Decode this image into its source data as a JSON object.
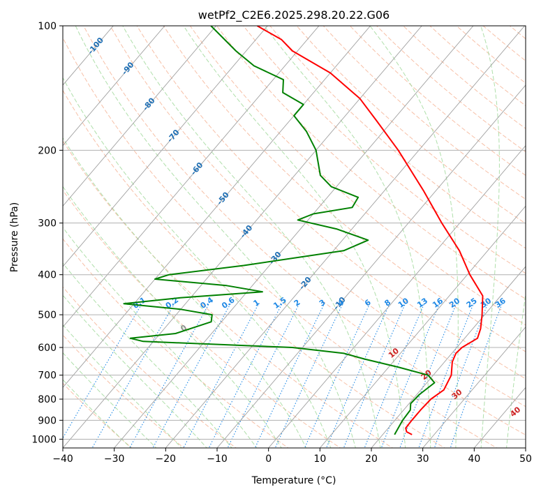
{
  "chart_data": {
    "type": "skew-t",
    "title": "wetPf2_C2E6.2025.298.20.22.G06",
    "xlabel": "Temperature (°C)",
    "ylabel": "Pressure (hPa)",
    "xlim": [
      -40,
      50
    ],
    "ylim_hpa": [
      1050,
      100
    ],
    "x_ticks": [
      -40,
      -30,
      -20,
      -10,
      0,
      10,
      20,
      30,
      40,
      50
    ],
    "x_tick_labels": [
      "−40",
      "−30",
      "−20",
      "−10",
      "0",
      "10",
      "20",
      "30",
      "40",
      "50"
    ],
    "p_ticks": [
      1000,
      900,
      800,
      700,
      600,
      500,
      400,
      300,
      200,
      100
    ],
    "p_tick_labels": [
      "1000",
      "900",
      "800",
      "700",
      "600",
      "500",
      "400",
      "300",
      "200",
      "100"
    ],
    "colors": {
      "temperature": "#ff0000",
      "dewpoint": "#008000",
      "isotherm": "#a0a0a0",
      "dry_adiabat": "#f4a582",
      "moist_adiabat": "#a1d99b",
      "mixing_ratio": "#1e88e5",
      "isotherm_label": "#1f6fb4",
      "moist_label": "#8f8f8f",
      "dry_label": "#cc2222"
    },
    "temperature": [
      {
        "p": 975,
        "t": 25.7
      },
      {
        "p": 960,
        "t": 24.2
      },
      {
        "p": 940,
        "t": 23.4
      },
      {
        "p": 900,
        "t": 23.3
      },
      {
        "p": 850,
        "t": 23.3
      },
      {
        "p": 800,
        "t": 23.5
      },
      {
        "p": 760,
        "t": 24.5
      },
      {
        "p": 700,
        "t": 23.5
      },
      {
        "p": 650,
        "t": 21.5
      },
      {
        "p": 620,
        "t": 20.8
      },
      {
        "p": 600,
        "t": 21.0
      },
      {
        "p": 570,
        "t": 22.5
      },
      {
        "p": 540,
        "t": 21.5
      },
      {
        "p": 500,
        "t": 19.5
      },
      {
        "p": 450,
        "t": 16.5
      },
      {
        "p": 400,
        "t": 10.5
      },
      {
        "p": 350,
        "t": 4.5
      },
      {
        "p": 300,
        "t": -3.5
      },
      {
        "p": 250,
        "t": -12.5
      },
      {
        "p": 200,
        "t": -24.0
      },
      {
        "p": 170,
        "t": -33.0
      },
      {
        "p": 150,
        "t": -40.0
      },
      {
        "p": 130,
        "t": -50.0
      },
      {
        "p": 115,
        "t": -61.0
      },
      {
        "p": 108,
        "t": -65.0
      },
      {
        "p": 100,
        "t": -72.0
      }
    ],
    "dewpoint": [
      {
        "p": 975,
        "t": 22.3
      },
      {
        "p": 900,
        "t": 21.5
      },
      {
        "p": 850,
        "t": 21.3
      },
      {
        "p": 820,
        "t": 20.3
      },
      {
        "p": 780,
        "t": 20.5
      },
      {
        "p": 730,
        "t": 21.5
      },
      {
        "p": 700,
        "t": 19.0
      },
      {
        "p": 670,
        "t": 12.0
      },
      {
        "p": 640,
        "t": 4.0
      },
      {
        "p": 620,
        "t": -1.0
      },
      {
        "p": 600,
        "t": -12.0
      },
      {
        "p": 580,
        "t": -42.0
      },
      {
        "p": 570,
        "t": -45.0
      },
      {
        "p": 555,
        "t": -37.0
      },
      {
        "p": 520,
        "t": -32.0
      },
      {
        "p": 500,
        "t": -33.0
      },
      {
        "p": 485,
        "t": -40.0
      },
      {
        "p": 470,
        "t": -52.0
      },
      {
        "p": 455,
        "t": -42.0
      },
      {
        "p": 440,
        "t": -27.0
      },
      {
        "p": 425,
        "t": -35.0
      },
      {
        "p": 410,
        "t": -50.0
      },
      {
        "p": 400,
        "t": -48.0
      },
      {
        "p": 380,
        "t": -35.0
      },
      {
        "p": 350,
        "t": -18.0
      },
      {
        "p": 330,
        "t": -15.0
      },
      {
        "p": 310,
        "t": -23.0
      },
      {
        "p": 295,
        "t": -32.0
      },
      {
        "p": 285,
        "t": -30.0
      },
      {
        "p": 275,
        "t": -23.5
      },
      {
        "p": 260,
        "t": -24.0
      },
      {
        "p": 245,
        "t": -31.0
      },
      {
        "p": 230,
        "t": -35.0
      },
      {
        "p": 200,
        "t": -40.0
      },
      {
        "p": 180,
        "t": -45.0
      },
      {
        "p": 165,
        "t": -50.0
      },
      {
        "p": 155,
        "t": -50.0
      },
      {
        "p": 145,
        "t": -56.0
      },
      {
        "p": 135,
        "t": -58.0
      },
      {
        "p": 125,
        "t": -66.0
      },
      {
        "p": 115,
        "t": -72.0
      },
      {
        "p": 100,
        "t": -81.0
      }
    ],
    "isotherm_labels": [
      {
        "t": -100,
        "text": "-100",
        "p": 112
      },
      {
        "t": -90,
        "text": "-90",
        "p": 127
      },
      {
        "t": -80,
        "text": "-80",
        "p": 155
      },
      {
        "t": -70,
        "text": "-70",
        "p": 185
      },
      {
        "t": -60,
        "text": "-60",
        "p": 222
      },
      {
        "t": -50,
        "text": "-50",
        "p": 262
      },
      {
        "t": -40,
        "text": "-40",
        "p": 315
      },
      {
        "t": -30,
        "text": "-30",
        "p": 365
      },
      {
        "t": -20,
        "text": "-20",
        "p": 420
      },
      {
        "t": -10,
        "text": "-10",
        "p": 470
      }
    ],
    "mixing_ratio_lines": [
      0.1,
      0.2,
      0.4,
      0.6,
      1,
      1.5,
      2,
      3,
      4,
      6,
      8,
      10,
      13,
      16,
      20,
      25,
      30,
      36
    ],
    "mixing_ratio_labels": [
      "0.1",
      "0.2",
      "0.4",
      "0.6",
      "1",
      "1.5",
      "2",
      "3",
      "4",
      "6",
      "8",
      "10",
      "13",
      "16",
      "20",
      "25",
      "30",
      "36"
    ],
    "mixing_ratio_label_p": 480,
    "moist_adiabat_label": {
      "text": "0",
      "t_at_1000": 0,
      "p": 540
    },
    "dry_adiabat_labels": [
      {
        "text": "10",
        "p": 620,
        "theta_c": 50
      },
      {
        "text": "20",
        "p": 700,
        "theta_c": 50
      },
      {
        "text": "30",
        "p": 780,
        "theta_c": 50
      },
      {
        "text": "40",
        "p": 860,
        "theta_c": 56
      }
    ]
  }
}
